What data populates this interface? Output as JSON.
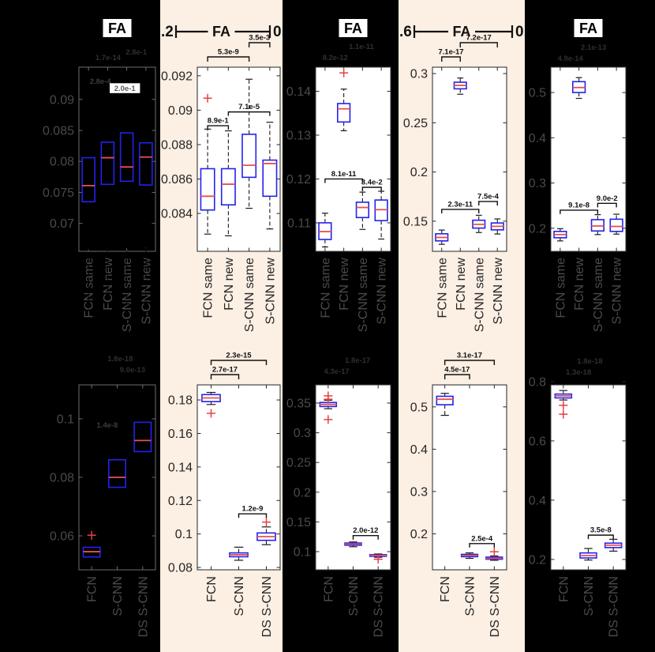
{
  "figure": {
    "metric_label": "FA",
    "colors": {
      "dark_bg": "#000000",
      "light_bg": "#fcefe3",
      "plot_white": "#ffffff",
      "box": "#2222ee",
      "median": "#e85050",
      "outlier": "#e84040",
      "dim_text": "#2f2f2f",
      "gray_label": "#4a4a4a",
      "black_text": "#111111"
    },
    "columns": [
      {
        "theme": "dark",
        "header": {
          "style": "boxed",
          "label": "FA"
        }
      },
      {
        "theme": "light",
        "header": {
          "style": "range",
          "label": "FA",
          "left": ".2",
          "right": "0."
        }
      },
      {
        "theme": "contrast",
        "header": {
          "style": "boxed",
          "label": "FA"
        }
      },
      {
        "theme": "light",
        "header": {
          "style": "range",
          "label": "FA",
          "left": ".6",
          "right": "0."
        }
      },
      {
        "theme": "contrast",
        "header": {
          "style": "boxed",
          "label": "FA"
        }
      }
    ]
  },
  "chart_data": [
    {
      "id": "fa-top-1",
      "type": "box",
      "panel": "top",
      "col": 1,
      "theme": "dark",
      "categories": [
        "FCN same",
        "FCN new",
        "S-CNN same",
        "S-CNN new"
      ],
      "ylim": [
        0.0655,
        0.0952
      ],
      "yticks": [
        {
          "v": 0.07,
          "label": "0.07"
        },
        {
          "v": 0.075,
          "label": "0.075"
        },
        {
          "v": 0.08,
          "label": "0.08"
        },
        {
          "v": 0.085,
          "label": "0.085"
        },
        {
          "v": 0.09,
          "label": "0.09"
        }
      ],
      "boxes": [
        {
          "label": "FCN same",
          "whislo": 0.056,
          "q1": 0.0735,
          "med": 0.0761,
          "q3": 0.0806,
          "whishi": 0.0875,
          "outliers": []
        },
        {
          "label": "FCN new",
          "whislo": 0.058,
          "q1": 0.0763,
          "med": 0.0806,
          "q3": 0.0831,
          "whishi": 0.089,
          "outliers": []
        },
        {
          "label": "S-CNN same",
          "whislo": 0.057,
          "q1": 0.0768,
          "med": 0.0791,
          "q3": 0.0846,
          "whishi": 0.09,
          "outliers": []
        },
        {
          "label": "S-CNN new",
          "whislo": 0.0565,
          "q1": 0.0762,
          "med": 0.0807,
          "q3": 0.083,
          "whishi": 0.0885,
          "outliers": []
        }
      ],
      "annotations_above": [
        {
          "text": "1.7e-14",
          "xfrac": 0.38,
          "dy": 9
        },
        {
          "text": "2.8e-1",
          "xfrac": 0.75,
          "dy": 16
        }
      ],
      "annotations_inside": [
        {
          "text": "2.8e-4",
          "xfrac": 0.28,
          "y": 0.0925
        },
        {
          "text": "2.0e-1",
          "xfrac": 0.6,
          "y": 0.0914,
          "bg": "#ffffff",
          "fg": "#5a5a5a"
        }
      ],
      "brackets_above": [],
      "brackets_inside": []
    },
    {
      "id": "fa-top-2",
      "type": "box",
      "panel": "top",
      "col": 2,
      "theme": "light",
      "categories": [
        "FCN same",
        "FCN new",
        "S-CNN same",
        "S-CNN new"
      ],
      "ylim": [
        0.0818,
        0.0925
      ],
      "yticks": [
        {
          "v": 0.084,
          "label": "0.084"
        },
        {
          "v": 0.086,
          "label": "0.086"
        },
        {
          "v": 0.088,
          "label": "0.088"
        },
        {
          "v": 0.09,
          "label": "0.09"
        },
        {
          "v": 0.092,
          "label": "0.092"
        }
      ],
      "boxes": [
        {
          "label": "FCN same",
          "whislo": 0.0828,
          "q1": 0.0842,
          "med": 0.085,
          "q3": 0.0866,
          "whishi": 0.0889,
          "outliers": [
            0.0907
          ]
        },
        {
          "label": "FCN new",
          "whislo": 0.0827,
          "q1": 0.0845,
          "med": 0.0857,
          "q3": 0.0866,
          "whishi": 0.0888,
          "outliers": []
        },
        {
          "label": "S-CNN same",
          "whislo": 0.0843,
          "q1": 0.0861,
          "med": 0.0868,
          "q3": 0.0886,
          "whishi": 0.0918,
          "outliers": []
        },
        {
          "label": "S-CNN new",
          "whislo": 0.0831,
          "q1": 0.085,
          "med": 0.0869,
          "q3": 0.0871,
          "whishi": 0.0893,
          "outliers": []
        }
      ],
      "brackets_above": [
        {
          "from": 0,
          "to": 2,
          "label": "5.3e-9",
          "level": 1
        },
        {
          "from": 2,
          "to": 3,
          "label": "3.5e-3",
          "level": 2
        }
      ],
      "brackets_inside": [
        {
          "from": 0,
          "to": 1,
          "label": "8.9e-1",
          "y": 0.0891
        },
        {
          "from": 1,
          "to": 3,
          "label": "7.1e-5",
          "y": 0.0899
        }
      ],
      "annotations_above": [],
      "annotations_inside": []
    },
    {
      "id": "fa-top-3",
      "type": "box",
      "panel": "top",
      "col": 3,
      "theme": "contrast",
      "categories": [
        "FCN same",
        "FCN new",
        "S-CNN same",
        "S-CNN new"
      ],
      "ylim": [
        0.1035,
        0.1455
      ],
      "yticks": [
        {
          "v": 0.11,
          "label": "0.11"
        },
        {
          "v": 0.12,
          "label": "0.12"
        },
        {
          "v": 0.13,
          "label": "0.13"
        },
        {
          "v": 0.14,
          "label": "0.14"
        }
      ],
      "boxes": [
        {
          "label": "FCN same",
          "whislo": 0.1045,
          "q1": 0.1062,
          "med": 0.108,
          "q3": 0.11,
          "whishi": 0.1122,
          "outliers": []
        },
        {
          "label": "FCN new",
          "whislo": 0.131,
          "q1": 0.133,
          "med": 0.136,
          "q3": 0.1372,
          "whishi": 0.1405,
          "outliers": [
            0.1442
          ]
        },
        {
          "label": "S-CNN same",
          "whislo": 0.1085,
          "q1": 0.1112,
          "med": 0.1135,
          "q3": 0.1147,
          "whishi": 0.117,
          "outliers": []
        },
        {
          "label": "S-CNN new",
          "whislo": 0.1063,
          "q1": 0.1105,
          "med": 0.113,
          "q3": 0.1152,
          "whishi": 0.1172,
          "outliers": []
        }
      ],
      "annotations_above": [
        {
          "text": "8.2e-12",
          "xfrac": 0.26,
          "dy": 9
        },
        {
          "text": "1.1e-11",
          "xfrac": 0.61,
          "dy": 23
        }
      ],
      "brackets_inside": [
        {
          "from": 0,
          "to": 2,
          "label": "8.1e-11",
          "y": 0.12
        },
        {
          "from": 2,
          "to": 3,
          "label": "3.4e-2",
          "y": 0.1181
        }
      ],
      "brackets_above": [],
      "annotations_inside": []
    },
    {
      "id": "fa-top-4",
      "type": "box",
      "panel": "top",
      "col": 4,
      "theme": "light",
      "categories": [
        "FCN same",
        "FCN new",
        "S-CNN same",
        "S-CNN new"
      ],
      "ylim": [
        0.1194,
        0.3065
      ],
      "yticks": [
        {
          "v": 0.15,
          "label": "0.15"
        },
        {
          "v": 0.2,
          "label": "0.2"
        },
        {
          "v": 0.25,
          "label": "0.25"
        },
        {
          "v": 0.3,
          "label": "0.3"
        }
      ],
      "boxes": [
        {
          "label": "FCN same",
          "whislo": 0.1265,
          "q1": 0.13,
          "med": 0.1335,
          "q3": 0.1372,
          "whishi": 0.141,
          "outliers": []
        },
        {
          "label": "FCN new",
          "whislo": 0.279,
          "q1": 0.2845,
          "med": 0.288,
          "q3": 0.2912,
          "whishi": 0.2955,
          "outliers": []
        },
        {
          "label": "S-CNN same",
          "whislo": 0.1385,
          "q1": 0.143,
          "med": 0.1468,
          "q3": 0.151,
          "whishi": 0.156,
          "outliers": []
        },
        {
          "label": "S-CNN new",
          "whislo": 0.137,
          "q1": 0.1412,
          "med": 0.1448,
          "q3": 0.1482,
          "whishi": 0.1523,
          "outliers": []
        }
      ],
      "brackets_above": [
        {
          "from": 0,
          "to": 1,
          "label": "7.1e-17",
          "level": 1
        },
        {
          "from": 1,
          "to": 3,
          "label": "7.2e-17",
          "level": 2
        }
      ],
      "brackets_inside": [
        {
          "from": 0,
          "to": 2,
          "label": "2.3e-11",
          "y": 0.162
        },
        {
          "from": 2,
          "to": 3,
          "label": "7.5e-4",
          "y": 0.17
        }
      ],
      "annotations_above": [],
      "annotations_inside": []
    },
    {
      "id": "fa-top-5",
      "type": "box",
      "panel": "top",
      "col": 5,
      "theme": "contrast",
      "categories": [
        "FCN same",
        "FCN new",
        "S-CNN same",
        "S-CNN new"
      ],
      "ylim": [
        0.149,
        0.556
      ],
      "yticks": [
        {
          "v": 0.2,
          "label": "0.2"
        },
        {
          "v": 0.3,
          "label": "0.3"
        },
        {
          "v": 0.4,
          "label": "0.4"
        },
        {
          "v": 0.5,
          "label": "0.5"
        }
      ],
      "boxes": [
        {
          "label": "FCN same",
          "whislo": 0.172,
          "q1": 0.179,
          "med": 0.186,
          "q3": 0.193,
          "whishi": 0.199,
          "outliers": []
        },
        {
          "label": "FCN new",
          "whislo": 0.487,
          "q1": 0.5,
          "med": 0.511,
          "q3": 0.524,
          "whishi": 0.533,
          "outliers": []
        },
        {
          "label": "S-CNN same",
          "whislo": 0.186,
          "q1": 0.194,
          "med": 0.205,
          "q3": 0.219,
          "whishi": 0.23,
          "outliers": []
        },
        {
          "label": "S-CNN new",
          "whislo": 0.187,
          "q1": 0.193,
          "med": 0.204,
          "q3": 0.22,
          "whishi": 0.231,
          "outliers": []
        }
      ],
      "annotations_above": [
        {
          "text": "4.9e-14",
          "xfrac": 0.26,
          "dy": 8
        },
        {
          "text": "2.1e-13",
          "xfrac": 0.57,
          "dy": 22
        }
      ],
      "brackets_inside": [
        {
          "from": 0,
          "to": 2,
          "label": "9.1e-8",
          "y": 0.24
        },
        {
          "from": 2,
          "to": 3,
          "label": "9.0e-2",
          "y": 0.255
        }
      ],
      "brackets_above": [],
      "annotations_inside": []
    },
    {
      "id": "fa-bottom-1",
      "type": "box",
      "panel": "bottom",
      "col": 1,
      "theme": "dark",
      "categories": [
        "FCN",
        "S-CNN",
        "DS S-CNN"
      ],
      "ylim": [
        0.0484,
        0.1116
      ],
      "yticks": [
        {
          "v": 0.06,
          "label": "0.06"
        },
        {
          "v": 0.08,
          "label": "0.08"
        },
        {
          "v": 0.1,
          "label": "0.1"
        }
      ],
      "boxes": [
        {
          "label": "FCN",
          "whislo": 0.0505,
          "q1": 0.0528,
          "med": 0.0546,
          "q3": 0.0561,
          "whishi": 0.058,
          "outliers": [
            0.0602
          ]
        },
        {
          "label": "S-CNN",
          "whislo": 0.072,
          "q1": 0.0766,
          "med": 0.08,
          "q3": 0.086,
          "whishi": 0.09,
          "outliers": []
        },
        {
          "label": "DS S-CNN",
          "whislo": 0.085,
          "q1": 0.0888,
          "med": 0.0926,
          "q3": 0.0988,
          "whishi": 0.103,
          "outliers": []
        }
      ],
      "annotations_above": [
        {
          "text": "1.8e-18",
          "xfrac": 0.54,
          "dy": 30
        },
        {
          "text": "9.0e-13",
          "xfrac": 0.7,
          "dy": 16
        }
      ],
      "annotations_inside": [
        {
          "text": "1.4e-8",
          "xfrac": 0.37,
          "y": 0.097
        }
      ],
      "brackets_above": [],
      "brackets_inside": []
    },
    {
      "id": "fa-bottom-2",
      "type": "box",
      "panel": "bottom",
      "col": 2,
      "theme": "light",
      "categories": [
        "FCN",
        "S-CNN",
        "DS S-CNN"
      ],
      "ylim": [
        0.0786,
        0.189
      ],
      "yticks": [
        {
          "v": 0.08,
          "label": "0.08"
        },
        {
          "v": 0.1,
          "label": "0.1"
        },
        {
          "v": 0.12,
          "label": "0.12"
        },
        {
          "v": 0.14,
          "label": "0.14"
        },
        {
          "v": 0.16,
          "label": "0.16"
        },
        {
          "v": 0.18,
          "label": "0.18"
        }
      ],
      "boxes": [
        {
          "label": "FCN",
          "whislo": 0.1773,
          "q1": 0.179,
          "med": 0.1812,
          "q3": 0.1832,
          "whishi": 0.1845,
          "outliers": [
            0.172
          ]
        },
        {
          "label": "S-CNN",
          "whislo": 0.0843,
          "q1": 0.0864,
          "med": 0.0876,
          "q3": 0.0887,
          "whishi": 0.0921,
          "outliers": []
        },
        {
          "label": "DS S-CNN",
          "whislo": 0.0936,
          "q1": 0.0962,
          "med": 0.0984,
          "q3": 0.1006,
          "whishi": 0.1042,
          "outliers": [
            0.1071
          ]
        }
      ],
      "brackets_above": [
        {
          "from": 0,
          "to": 1,
          "label": "2.7e-17",
          "level": 1
        },
        {
          "from": 0,
          "to": 2,
          "label": "2.3e-15",
          "level": 2
        }
      ],
      "brackets_inside": [
        {
          "from": 1,
          "to": 2,
          "label": "1.2e-9",
          "y": 0.112
        }
      ],
      "annotations_above": [],
      "annotations_inside": []
    },
    {
      "id": "fa-bottom-3",
      "type": "box",
      "panel": "bottom",
      "col": 3,
      "theme": "contrast",
      "categories": [
        "FCN",
        "S-CNN",
        "DS S-CNN"
      ],
      "ylim": [
        0.0694,
        0.3806
      ],
      "yticks": [
        {
          "v": 0.1,
          "label": "0.1"
        },
        {
          "v": 0.15,
          "label": "0.15"
        },
        {
          "v": 0.2,
          "label": "0.2"
        },
        {
          "v": 0.25,
          "label": "0.25"
        },
        {
          "v": 0.3,
          "label": "0.3"
        },
        {
          "v": 0.35,
          "label": "0.35"
        }
      ],
      "boxes": [
        {
          "label": "FCN",
          "whislo": 0.3405,
          "q1": 0.3442,
          "med": 0.3478,
          "q3": 0.351,
          "whishi": 0.3548,
          "outliers": [
            0.3622,
            0.3565,
            0.3222
          ]
        },
        {
          "label": "S-CNN",
          "whislo": 0.1082,
          "q1": 0.1108,
          "med": 0.1128,
          "q3": 0.1145,
          "whishi": 0.1162,
          "outliers": []
        },
        {
          "label": "DS S-CNN",
          "whislo": 0.0905,
          "q1": 0.0921,
          "med": 0.0934,
          "q3": 0.0948,
          "whishi": 0.096,
          "outliers": [
            0.0872
          ]
        }
      ],
      "annotations_above": [
        {
          "text": "4.3e-17",
          "xfrac": 0.28,
          "dy": 14
        },
        {
          "text": "1.8e-17",
          "xfrac": 0.56,
          "dy": 28
        }
      ],
      "brackets_inside": [
        {
          "from": 1,
          "to": 2,
          "label": "2.0e-12",
          "y": 0.127
        }
      ],
      "brackets_above": [],
      "annotations_inside": []
    },
    {
      "id": "fa-bottom-4",
      "type": "box",
      "panel": "bottom",
      "col": 4,
      "theme": "light",
      "categories": [
        "FCN",
        "S-CNN",
        "DS S-CNN"
      ],
      "ylim": [
        0.115,
        0.552
      ],
      "yticks": [
        {
          "v": 0.2,
          "label": "0.2"
        },
        {
          "v": 0.3,
          "label": "0.3"
        },
        {
          "v": 0.4,
          "label": "0.4"
        },
        {
          "v": 0.5,
          "label": "0.5"
        }
      ],
      "boxes": [
        {
          "label": "FCN",
          "whislo": 0.48,
          "q1": 0.505,
          "med": 0.518,
          "q3": 0.525,
          "whishi": 0.532,
          "outliers": []
        },
        {
          "label": "S-CNN",
          "whislo": 0.142,
          "q1": 0.146,
          "med": 0.1487,
          "q3": 0.1515,
          "whishi": 0.155,
          "outliers": []
        },
        {
          "label": "DS S-CNN",
          "whislo": 0.1375,
          "q1": 0.14,
          "med": 0.1422,
          "q3": 0.145,
          "whishi": 0.1478,
          "outliers": [
            0.1578
          ]
        }
      ],
      "brackets_above": [
        {
          "from": 0,
          "to": 1,
          "label": "4.5e-17",
          "level": 1
        },
        {
          "from": 0,
          "to": 2,
          "label": "3.1e-17",
          "level": 2
        }
      ],
      "brackets_inside": [
        {
          "from": 1,
          "to": 2,
          "label": "2.5e-4",
          "y": 0.177
        }
      ],
      "annotations_above": [],
      "annotations_inside": []
    },
    {
      "id": "fa-bottom-5",
      "type": "box",
      "panel": "bottom",
      "col": 5,
      "theme": "contrast",
      "categories": [
        "FCN",
        "S-CNN",
        "DS S-CNN"
      ],
      "ylim": [
        0.165,
        0.789
      ],
      "yticks": [
        {
          "v": 0.2,
          "label": "0.2"
        },
        {
          "v": 0.4,
          "label": "0.4"
        },
        {
          "v": 0.6,
          "label": "0.6"
        },
        {
          "v": 0.8,
          "label": "0.8"
        }
      ],
      "boxes": [
        {
          "label": "FCN",
          "whislo": 0.738,
          "q1": 0.745,
          "med": 0.752,
          "q3": 0.758,
          "whishi": 0.77,
          "outliers": [
            0.72,
            0.69
          ]
        },
        {
          "label": "S-CNN",
          "whislo": 0.198,
          "q1": 0.205,
          "med": 0.213,
          "q3": 0.222,
          "whishi": 0.237,
          "outliers": []
        },
        {
          "label": "DS S-CNN",
          "whislo": 0.228,
          "q1": 0.24,
          "med": 0.248,
          "q3": 0.255,
          "whishi": 0.268,
          "outliers": []
        }
      ],
      "annotations_above": [
        {
          "text": "1.3e-18",
          "xfrac": 0.37,
          "dy": 13
        },
        {
          "text": "1.8e-18",
          "xfrac": 0.52,
          "dy": 27
        }
      ],
      "brackets_inside": [
        {
          "from": 1,
          "to": 2,
          "label": "3.5e-8",
          "y": 0.282
        }
      ],
      "brackets_above": [],
      "annotations_inside": []
    }
  ]
}
